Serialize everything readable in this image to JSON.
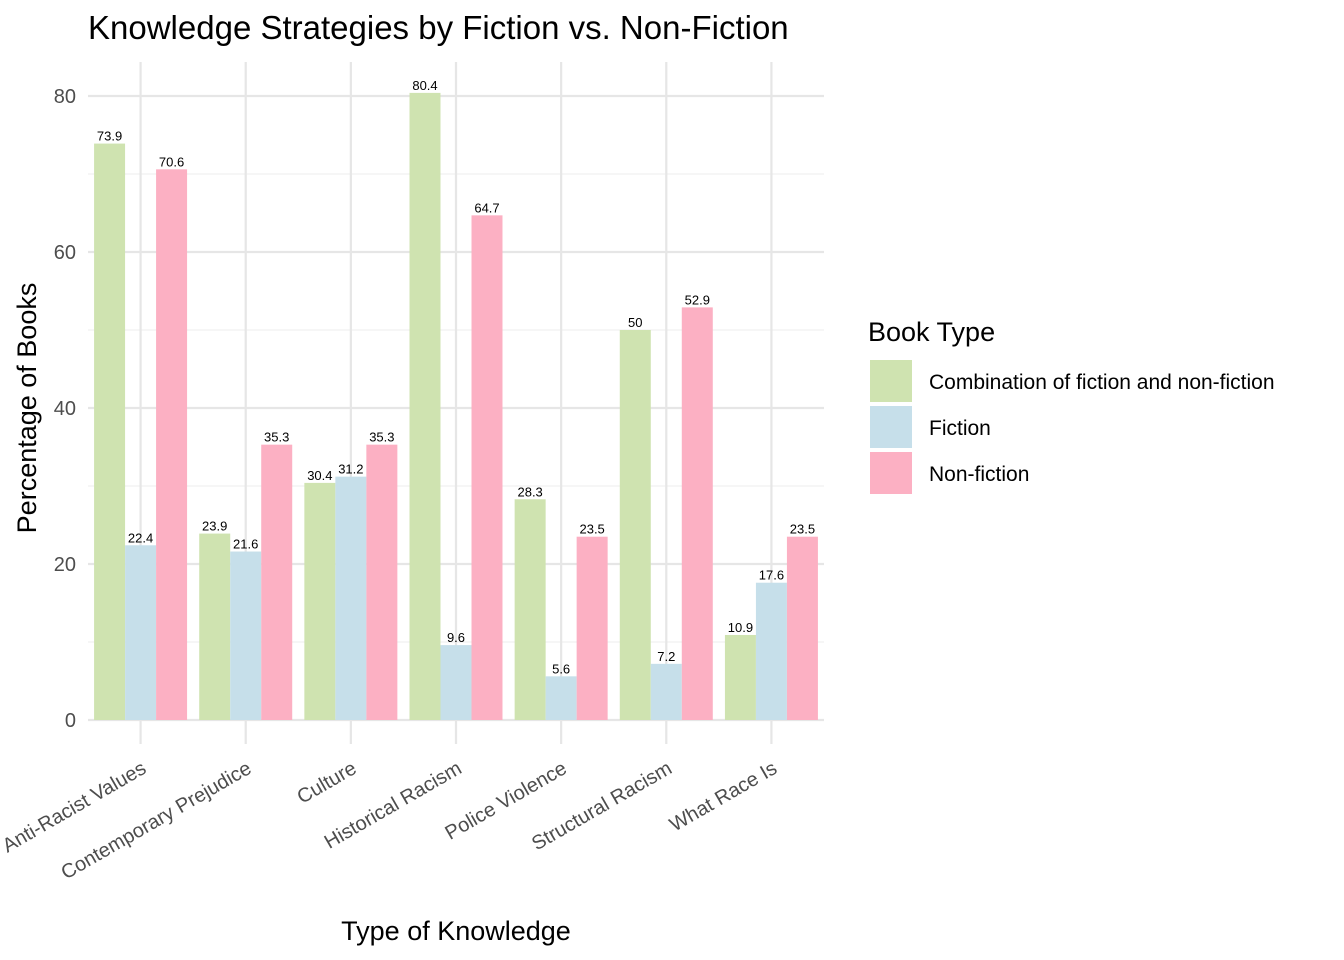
{
  "chart_data": {
    "type": "bar",
    "title": "Knowledge Strategies by Fiction vs. Non-Fiction",
    "xlabel": "Type of Knowledge",
    "ylabel": "Percentage of Books",
    "ylim": [
      0,
      84
    ],
    "yticks": [
      0,
      20,
      40,
      60,
      80
    ],
    "grid": true,
    "legend_position": "right",
    "legend_title": "Book Type",
    "categories": [
      "Anti-Racist Values",
      "Contemporary Prejudice",
      "Culture",
      "Historical Racism",
      "Police Violence",
      "Structural Racism",
      "What Race Is"
    ],
    "series": [
      {
        "name": "Combination of fiction and non-fiction",
        "color": "#cfe3b0",
        "values": [
          73.9,
          23.9,
          30.4,
          80.4,
          28.3,
          50,
          10.9
        ],
        "labels": [
          "73.9",
          "23.9",
          "30.4",
          "80.4",
          "28.3",
          "50",
          "10.9"
        ]
      },
      {
        "name": "Fiction",
        "color": "#c6dfea",
        "values": [
          22.4,
          21.6,
          31.2,
          9.6,
          5.6,
          7.2,
          17.6
        ],
        "labels": [
          "22.4",
          "21.6",
          "31.2",
          "9.6",
          "5.6",
          "7.2",
          "17.6"
        ]
      },
      {
        "name": "Non-fiction",
        "color": "#fcb0c3",
        "values": [
          70.6,
          35.3,
          35.3,
          64.7,
          23.5,
          52.9,
          23.5
        ],
        "labels": [
          "70.6",
          "35.3",
          "35.3",
          "64.7",
          "23.5",
          "52.9",
          "23.5"
        ]
      }
    ]
  }
}
